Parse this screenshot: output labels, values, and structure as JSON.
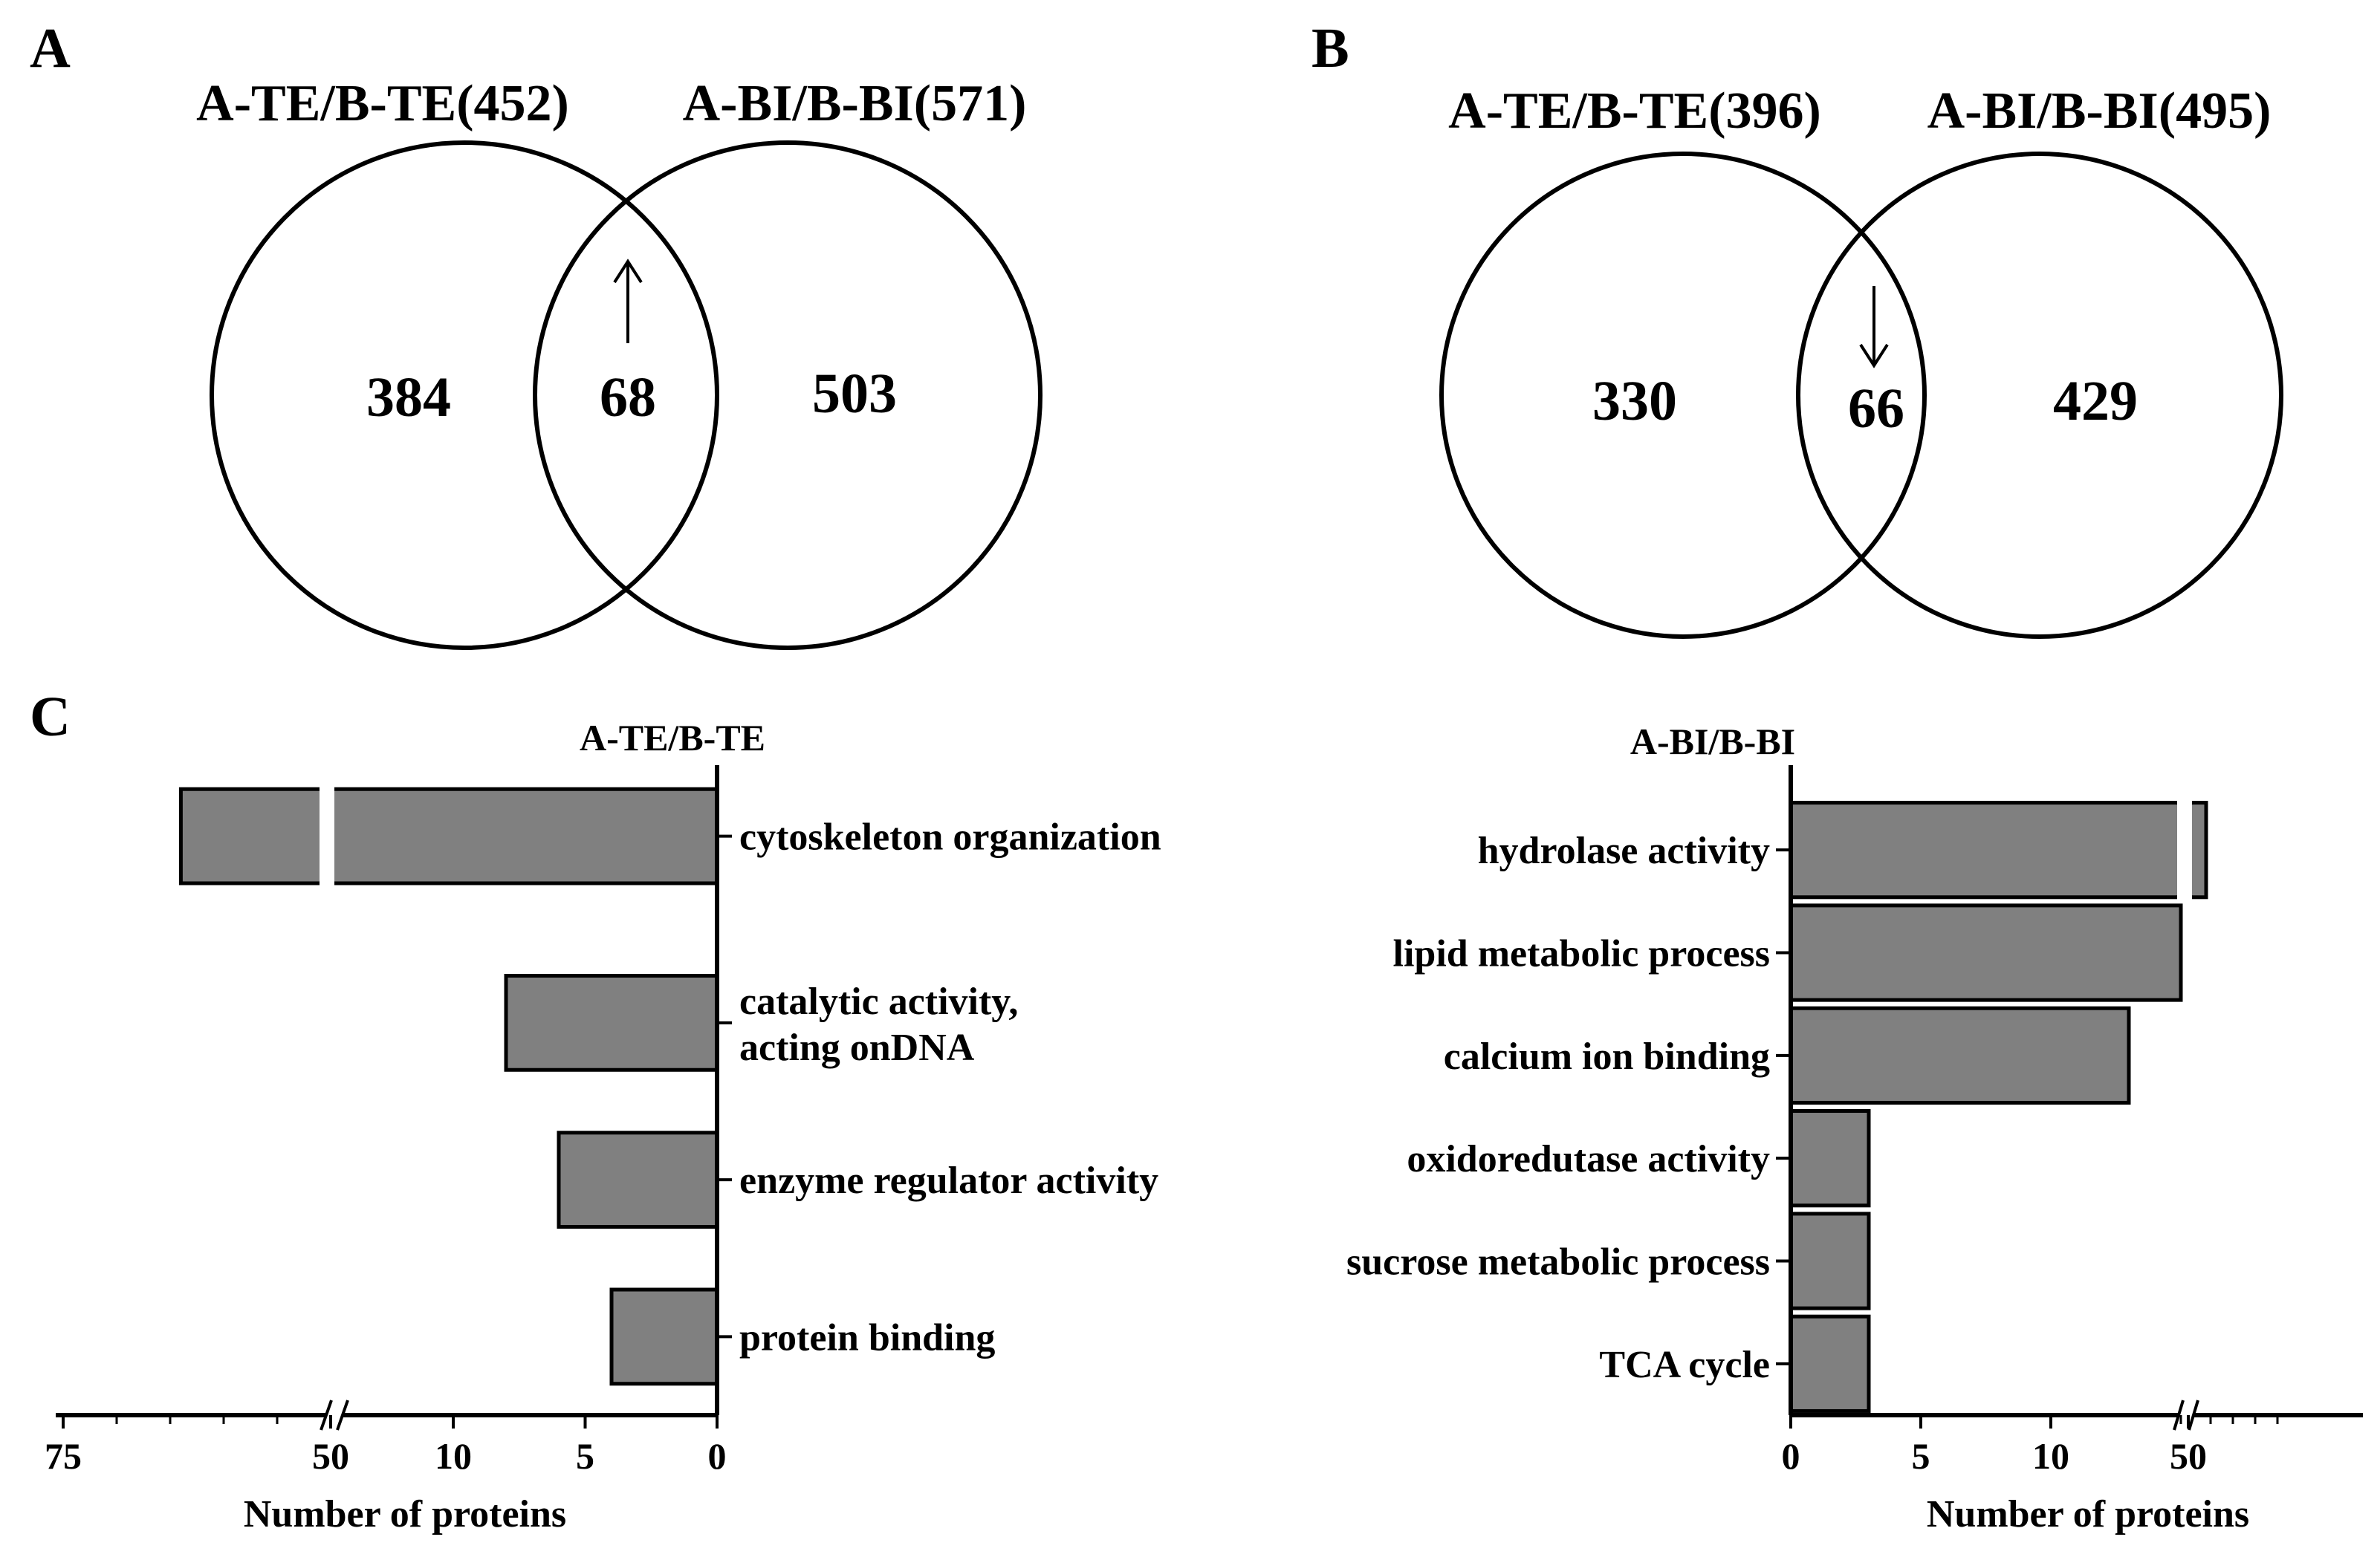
{
  "panels": {
    "A": {
      "label": "A",
      "set1_label": "A-TE/B-TE(452)",
      "set2_label": "A-BI/B-BI(571)",
      "only1": "384",
      "overlap": "68",
      "only2": "503",
      "arrow": "up"
    },
    "B": {
      "label": "B",
      "set1_label": "A-TE/B-TE(396)",
      "set2_label": "A-BI/B-BI(495)",
      "only1": "330",
      "overlap": "66",
      "only2": "429",
      "arrow": "down"
    },
    "C": {
      "label": "C"
    }
  },
  "colors": {
    "bar_fill": "#808080",
    "stroke": "#000000"
  },
  "chart_data": [
    {
      "type": "bar",
      "orientation": "horizontal",
      "direction": "right-to-left",
      "title": "A-TE/B-TE",
      "xlabel": "Number of proteins",
      "ylabel": "",
      "axis_break": [
        10,
        50
      ],
      "x_ticks": [
        "75",
        "50",
        "10",
        "5",
        "0"
      ],
      "categories": [
        "cytoskeleton organization",
        "catalytic activity,\nacting onDNA",
        "enzyme regulator activity",
        "protein binding"
      ],
      "values": [
        64,
        8,
        6,
        4
      ]
    },
    {
      "type": "bar",
      "orientation": "horizontal",
      "direction": "left-to-right",
      "title": "A-BI/B-BI",
      "xlabel": "Number of proteins",
      "ylabel": "",
      "axis_break": [
        15,
        50
      ],
      "x_ticks": [
        "0",
        "5",
        "10",
        "50"
      ],
      "categories": [
        "hydrolase activity",
        "lipid metabolic process",
        "calcium ion binding",
        "oxidoredutase activity",
        "sucrose metabolic process",
        "TCA cycle"
      ],
      "values": [
        54,
        15,
        13,
        3,
        3,
        3
      ]
    }
  ]
}
